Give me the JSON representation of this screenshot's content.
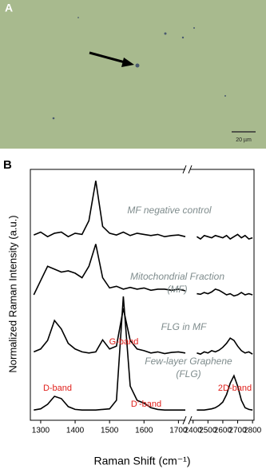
{
  "panel_a": {
    "label": "A",
    "scale_bar": "20 µm"
  },
  "panel_b_label": "B",
  "chart_data": {
    "type": "line",
    "x_label": "Raman Shift (cm⁻¹)",
    "y_label": "Normalized Raman Intensity (a.u.)",
    "xlim": [
      1270,
      2810
    ],
    "x_break": [
      1720,
      2380
    ],
    "ylim": [
      0,
      4.4
    ],
    "xticks": [
      1300,
      1400,
      1500,
      1600,
      1700,
      2400,
      2500,
      2600,
      2700,
      2800
    ],
    "x": [
      1280,
      1300,
      1320,
      1340,
      1360,
      1380,
      1400,
      1420,
      1440,
      1460,
      1480,
      1500,
      1520,
      1540,
      1560,
      1580,
      1600,
      1620,
      1640,
      1660,
      1680,
      1700,
      1720,
      2400,
      2425,
      2450,
      2475,
      2500,
      2525,
      2550,
      2575,
      2600,
      2625,
      2650,
      2675,
      2700,
      2725,
      2750,
      2775,
      2800
    ],
    "series": [
      {
        "name": "MF negative control",
        "color": "#000000",
        "values": [
          3.25,
          3.3,
          3.22,
          3.28,
          3.3,
          3.22,
          3.28,
          3.26,
          3.5,
          4.2,
          3.4,
          3.28,
          3.25,
          3.3,
          3.24,
          3.28,
          3.26,
          3.24,
          3.26,
          3.22,
          3.24,
          3.25,
          3.22,
          null,
          3.22,
          3.18,
          3.24,
          3.22,
          3.2,
          3.24,
          3.22,
          3.2,
          3.24,
          3.18,
          3.22,
          3.26,
          3.2,
          3.24,
          3.18,
          3.2
        ]
      },
      {
        "name": "Mitochondrial Fraction (MF)",
        "color": "#000000",
        "values": [
          2.2,
          2.45,
          2.7,
          2.65,
          2.6,
          2.62,
          2.58,
          2.5,
          2.7,
          3.09,
          2.5,
          2.32,
          2.35,
          2.3,
          2.33,
          2.3,
          2.32,
          2.28,
          2.3,
          2.3,
          2.28,
          2.3,
          2.27,
          null,
          2.22,
          2.21,
          2.24,
          2.22,
          2.25,
          2.3,
          2.28,
          2.24,
          2.2,
          2.22,
          2.18,
          2.2,
          2.24,
          2.2,
          2.22,
          2.2
        ]
      },
      {
        "name": "FLG in MF",
        "color": "#000000",
        "values": [
          1.2,
          1.25,
          1.4,
          1.75,
          1.6,
          1.35,
          1.25,
          1.2,
          1.18,
          1.2,
          1.41,
          1.25,
          1.3,
          1.96,
          1.4,
          1.25,
          1.22,
          1.18,
          1.2,
          1.17,
          1.19,
          1.2,
          1.18,
          null,
          1.18,
          1.16,
          1.2,
          1.18,
          1.22,
          1.2,
          1.23,
          1.28,
          1.35,
          1.44,
          1.4,
          1.3,
          1.22,
          1.18,
          1.2,
          1.16
        ]
      },
      {
        "name": "Few-layer Graphene (FLG)",
        "color": "#000000",
        "values": [
          0.18,
          0.2,
          0.28,
          0.42,
          0.38,
          0.24,
          0.19,
          0.18,
          0.18,
          0.18,
          0.19,
          0.2,
          0.35,
          2.17,
          0.6,
          0.35,
          0.3,
          0.22,
          0.19,
          0.18,
          0.18,
          0.18,
          0.18,
          null,
          0.18,
          0.18,
          0.18,
          0.19,
          0.2,
          0.22,
          0.26,
          0.32,
          0.45,
          0.65,
          0.78,
          0.6,
          0.35,
          0.22,
          0.19,
          0.18
        ]
      }
    ],
    "annotations": [
      "D-band",
      "G-band",
      "D'-band",
      "2D-band"
    ]
  }
}
